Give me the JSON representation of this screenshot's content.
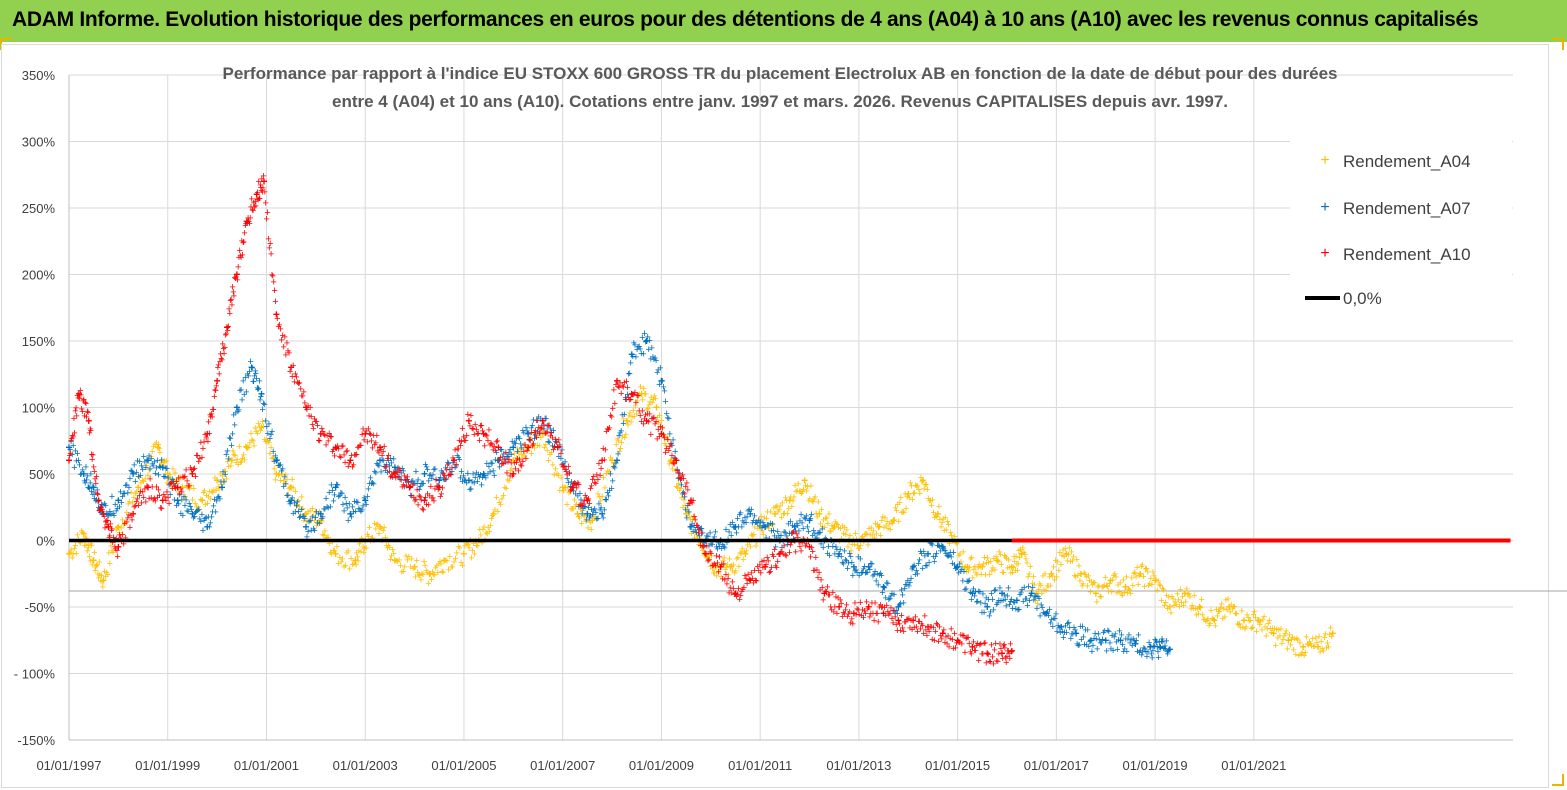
{
  "header": {
    "title": "ADAM Informe. Evolution historique des performances en euros pour des détentions de 4 ans (A04) à 10 ans (A10) avec les revenus connus capitalisés",
    "background": "#92d050"
  },
  "chart_data": {
    "type": "scatter",
    "title_line1": "Performance par rapport à l'indice EU STOXX 600 GROSS TR  du placement Electrolux AB en fonction de la date de début pour des durées",
    "title_line2": "entre 4 (A04) et 10 ans (A10). Cotations entre janv. 1997 et mars. 2026. Revenus CAPITALISES depuis avr. 1997.",
    "ylim": [
      -150,
      350
    ],
    "xlim": [
      1997.0,
      2026.25
    ],
    "y_ticks": [
      -150,
      -100,
      -50,
      0,
      50,
      100,
      150,
      200,
      250,
      300,
      350
    ],
    "y_tick_labels": [
      "-150%",
      "- 100%",
      "-50%",
      "0%",
      "50%",
      "100%",
      "150%",
      "200%",
      "250%",
      "300%",
      "350%"
    ],
    "x_tick_labels": [
      "01/01/1997",
      "01/01/1999",
      "01/01/2001",
      "01/01/2003",
      "01/01/2005",
      "01/01/2007",
      "01/01/2009",
      "01/01/2011",
      "01/01/2013",
      "01/01/2015",
      "01/01/2017",
      "01/01/2019",
      "01/01/2021"
    ],
    "x_tick_years": [
      1997,
      1999,
      2001,
      2003,
      2005,
      2007,
      2009,
      2011,
      2013,
      2015,
      2017,
      2019,
      2021
    ],
    "grid": true,
    "legend_position": "top-right",
    "series": [
      {
        "name": "Rendement_A04",
        "color": "#ffc000",
        "x": [
          1997.0,
          1997.3,
          1997.5,
          1997.7,
          1998.0,
          1998.4,
          1998.8,
          1999.0,
          1999.3,
          1999.7,
          2000.0,
          2000.3,
          2000.6,
          2000.9,
          2001.2,
          2001.5,
          2001.8,
          2002.1,
          2002.4,
          2002.8,
          2003.0,
          2003.3,
          2003.6,
          2004.0,
          2004.3,
          2004.6,
          2005.0,
          2005.3,
          2005.6,
          2006.0,
          2006.3,
          2006.6,
          2007.0,
          2007.3,
          2007.6,
          2008.0,
          2008.3,
          2008.6,
          2008.9,
          2009.2,
          2009.5,
          2009.8,
          2010.1,
          2010.4,
          2010.7,
          2011.0,
          2011.3,
          2011.6,
          2011.9,
          2012.2,
          2012.5,
          2012.8,
          2013.1,
          2013.4,
          2013.7,
          2014.0,
          2014.3,
          2014.6,
          2014.9,
          2015.2,
          2015.5,
          2015.8,
          2016.1,
          2016.3,
          2016.6,
          2016.9,
          2017.2,
          2017.5,
          2017.8,
          2018.1,
          2018.4,
          2018.7,
          2019.0,
          2019.3,
          2019.6,
          2019.9,
          2020.2,
          2020.5,
          2020.8,
          2021.1,
          2021.4,
          2021.7,
          2022.0,
          2022.3,
          2022.6
        ],
        "y": [
          -10,
          5,
          -15,
          -30,
          10,
          40,
          70,
          50,
          40,
          30,
          45,
          60,
          70,
          85,
          50,
          40,
          20,
          15,
          -10,
          -15,
          0,
          10,
          -15,
          -20,
          -25,
          -15,
          -10,
          0,
          20,
          60,
          70,
          80,
          40,
          20,
          15,
          60,
          90,
          110,
          100,
          60,
          20,
          0,
          -20,
          -20,
          -10,
          10,
          20,
          30,
          45,
          20,
          10,
          0,
          0,
          10,
          15,
          35,
          45,
          20,
          0,
          -20,
          -20,
          -15,
          -20,
          -10,
          -40,
          -25,
          -10,
          -25,
          -40,
          -30,
          -35,
          -25,
          -30,
          -50,
          -40,
          -50,
          -60,
          -50,
          -60,
          -60,
          -70,
          -75,
          -80,
          -80,
          -70
        ]
      },
      {
        "name": "Rendement_A07",
        "color": "#0070c0",
        "x": [
          1997.0,
          1997.3,
          1997.5,
          1997.7,
          1998.0,
          1998.3,
          1998.6,
          1998.9,
          1999.2,
          1999.5,
          1999.8,
          2000.1,
          2000.4,
          2000.7,
          2000.9,
          2001.2,
          2001.5,
          2001.8,
          2002.1,
          2002.4,
          2002.7,
          2003.0,
          2003.3,
          2003.6,
          2003.9,
          2004.2,
          2004.5,
          2004.8,
          2005.1,
          2005.4,
          2005.7,
          2006.0,
          2006.3,
          2006.6,
          2006.9,
          2007.2,
          2007.5,
          2007.8,
          2008.1,
          2008.4,
          2008.7,
          2009.0,
          2009.3,
          2009.6,
          2009.9,
          2010.2,
          2010.5,
          2010.8,
          2011.1,
          2011.4,
          2011.7,
          2012.0,
          2012.3,
          2012.6,
          2012.9,
          2013.2,
          2013.5,
          2013.8,
          2014.1,
          2014.4,
          2014.7,
          2015.0,
          2015.3,
          2015.6,
          2015.9,
          2016.2,
          2016.5,
          2016.8,
          2017.1,
          2017.4,
          2017.7,
          2018.0,
          2018.3,
          2018.6,
          2018.9,
          2019.1,
          2019.3
        ],
        "y": [
          70,
          50,
          40,
          20,
          30,
          50,
          60,
          55,
          30,
          20,
          10,
          40,
          100,
          130,
          110,
          60,
          30,
          10,
          20,
          40,
          20,
          30,
          60,
          55,
          40,
          50,
          45,
          60,
          45,
          50,
          60,
          70,
          80,
          90,
          70,
          40,
          20,
          20,
          60,
          140,
          150,
          120,
          60,
          10,
          0,
          0,
          10,
          20,
          10,
          0,
          10,
          15,
          0,
          -10,
          -20,
          -20,
          -35,
          -50,
          -20,
          -10,
          -5,
          -20,
          -40,
          -50,
          -40,
          -45,
          -40,
          -55,
          -65,
          -70,
          -75,
          -75,
          -75,
          -78,
          -80,
          -80,
          -82
        ]
      },
      {
        "name": "Rendement_A10",
        "color": "#ff0000",
        "x": [
          1997.0,
          1997.2,
          1997.4,
          1997.6,
          1997.8,
          1998.0,
          1998.3,
          1998.6,
          1998.9,
          1999.2,
          1999.5,
          1999.8,
          2000.0,
          2000.2,
          2000.4,
          2000.6,
          2000.8,
          2000.95,
          2001.2,
          2001.5,
          2001.8,
          2002.1,
          2002.4,
          2002.7,
          2003.0,
          2003.3,
          2003.6,
          2003.9,
          2004.2,
          2004.5,
          2004.8,
          2005.1,
          2005.4,
          2005.7,
          2006.0,
          2006.3,
          2006.6,
          2006.9,
          2007.2,
          2007.5,
          2007.8,
          2008.1,
          2008.4,
          2008.7,
          2009.0,
          2009.3,
          2009.6,
          2009.9,
          2010.2,
          2010.5,
          2010.8,
          2011.1,
          2011.4,
          2011.7,
          2012.0,
          2012.3,
          2012.6,
          2012.9,
          2013.2,
          2013.5,
          2013.8,
          2014.1,
          2014.4,
          2014.7,
          2015.0,
          2015.3,
          2015.6,
          2015.9,
          2016.1
        ],
        "y": [
          60,
          110,
          90,
          30,
          10,
          -5,
          20,
          40,
          30,
          40,
          50,
          80,
          120,
          160,
          200,
          240,
          260,
          270,
          170,
          130,
          100,
          80,
          70,
          60,
          80,
          70,
          50,
          40,
          30,
          40,
          60,
          90,
          80,
          70,
          50,
          70,
          90,
          70,
          40,
          30,
          60,
          120,
          110,
          90,
          80,
          60,
          30,
          -10,
          -20,
          -40,
          -30,
          -20,
          -10,
          0,
          -5,
          -40,
          -50,
          -55,
          -50,
          -55,
          -60,
          -60,
          -65,
          -70,
          -75,
          -80,
          -85,
          -85,
          -83
        ]
      },
      {
        "name": "0,0%",
        "color": "#000000",
        "x": [
          1997.0,
          2016.1
        ],
        "y": [
          0,
          0
        ]
      }
    ],
    "zero_extension": {
      "color": "#ff0000",
      "x": [
        2016.1,
        2026.2
      ],
      "y": [
        0,
        0
      ]
    }
  }
}
